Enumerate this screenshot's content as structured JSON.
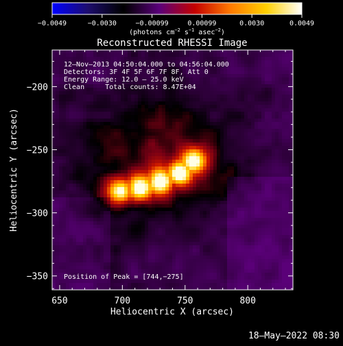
{
  "chart_data": {
    "type": "heatmap",
    "title": "Reconstructed RHESSI Image",
    "xlabel": "Heliocentric X (arcsec)",
    "ylabel": "Heliocentric Y (arcsec)",
    "xlim": [
      644,
      836
    ],
    "ylim": [
      -361,
      -171
    ],
    "x_ticks": [
      650,
      700,
      750,
      800
    ],
    "y_ticks": [
      -350,
      -300,
      -250,
      -200
    ],
    "x_tick_labels": [
      "650",
      "700",
      "750",
      "800"
    ],
    "y_tick_labels": [
      "−350",
      "−300",
      "−250",
      "−200"
    ],
    "colorbar": {
      "range": [
        -0.0049,
        0.0049
      ],
      "colormap": [
        "#0000ff",
        "#1d0d6d",
        "#000000",
        "#5a007a",
        "#c40000",
        "#ff7a00",
        "#ffd000",
        "#ffffff"
      ],
      "tick_labels": [
        "−0.0049",
        "−0.0030",
        "−0.00099",
        "0.00099",
        "0.0030",
        "0.0049"
      ],
      "units_line1": "(photons cm",
      "units_exp1": "−2",
      "units_line2": " s",
      "units_exp2": "−1",
      "units_line3": " asec",
      "units_exp3": "−2",
      "units_close": ")"
    },
    "peak": {
      "x": 744,
      "y": -275
    },
    "source": {
      "description_free": true,
      "arc_points": [
        [
          697,
          -283
        ],
        [
          714,
          -280
        ],
        [
          731,
          -276
        ],
        [
          746,
          -269
        ],
        [
          757,
          -260
        ]
      ],
      "peak_value": 0.0049
    }
  },
  "annotations": {
    "line1": "12–Nov–2013 04:50:04.000 to 04:56:04.000",
    "line2": "Detectors: 3F 4F 5F 6F 7F 8F, Att 0",
    "line3": "Energy Range: 12.0 – 25.0 keV",
    "line4": "Clean     Total counts: 8.47E+04",
    "peak_label": "Position of Peak = [744,−275]"
  },
  "footer": {
    "timestamp": "18–May–2022 08:30"
  }
}
